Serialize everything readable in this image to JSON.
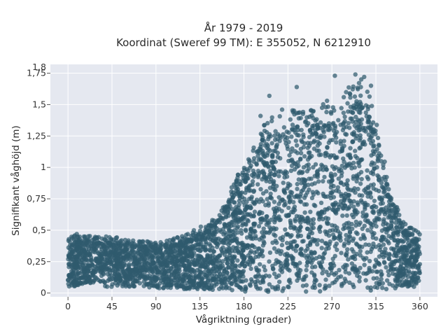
{
  "chart_data": {
    "type": "scatter",
    "title": "År 1979 - 2019",
    "subtitle": "Koordinat (Sweref 99 TM): E 355052, N 6212910",
    "xlabel": "Vågriktning (grader)",
    "ylabel": "Signifikant våghöjd (m)",
    "xlim": [
      -18,
      378
    ],
    "ylim": [
      -0.03,
      1.82
    ],
    "xticks": [
      0,
      45,
      90,
      135,
      180,
      225,
      270,
      315,
      360
    ],
    "xtick_labels": [
      "0",
      "45",
      "90",
      "135",
      "180",
      "225",
      "270",
      "315",
      "360"
    ],
    "yticks": [
      0,
      0.25,
      0.5,
      0.75,
      1,
      1.25,
      1.5,
      1.75
    ],
    "ytick_labels": [
      "0",
      "0,25",
      "0,5",
      "0,75",
      "1",
      "1,25",
      "1,5",
      "1,75"
    ],
    "top_tick_label": "1,8",
    "grid": true,
    "plot_background": "#e5e8f0",
    "marker_color": "#2f5a6e",
    "marker_opacity": 0.72,
    "envelope": [
      {
        "x": 0,
        "ymin": 0.05,
        "ymax": 0.46
      },
      {
        "x": 45,
        "ymin": 0.05,
        "ymax": 0.45
      },
      {
        "x": 90,
        "ymin": 0.04,
        "ymax": 0.4
      },
      {
        "x": 120,
        "ymin": 0.03,
        "ymax": 0.46
      },
      {
        "x": 150,
        "ymin": 0.02,
        "ymax": 0.6
      },
      {
        "x": 180,
        "ymin": 0.01,
        "ymax": 1.05
      },
      {
        "x": 200,
        "ymin": 0.01,
        "ymax": 1.4
      },
      {
        "x": 225,
        "ymin": 0.01,
        "ymax": 1.45
      },
      {
        "x": 270,
        "ymin": 0.01,
        "ymax": 1.55
      },
      {
        "x": 300,
        "ymin": 0.01,
        "ymax": 1.72
      },
      {
        "x": 315,
        "ymin": 0.02,
        "ymax": 1.45
      },
      {
        "x": 330,
        "ymin": 0.03,
        "ymax": 0.85
      },
      {
        "x": 345,
        "ymin": 0.05,
        "ymax": 0.55
      },
      {
        "x": 360,
        "ymin": 0.05,
        "ymax": 0.48
      }
    ],
    "notable_points": [
      {
        "x": 197,
        "y": 1.41
      },
      {
        "x": 206,
        "y": 1.57
      },
      {
        "x": 219,
        "y": 1.46
      },
      {
        "x": 234,
        "y": 1.64
      },
      {
        "x": 265,
        "y": 1.53
      },
      {
        "x": 269,
        "y": 1.44
      },
      {
        "x": 273,
        "y": 1.73
      },
      {
        "x": 286,
        "y": 1.51
      },
      {
        "x": 294,
        "y": 1.74
      },
      {
        "x": 300,
        "y": 1.7
      },
      {
        "x": 303,
        "y": 1.72
      },
      {
        "x": 310,
        "y": 1.65
      },
      {
        "x": 9,
        "y": 0.47
      },
      {
        "x": 39,
        "y": 0.45
      },
      {
        "x": 81,
        "y": 0.41
      }
    ]
  }
}
